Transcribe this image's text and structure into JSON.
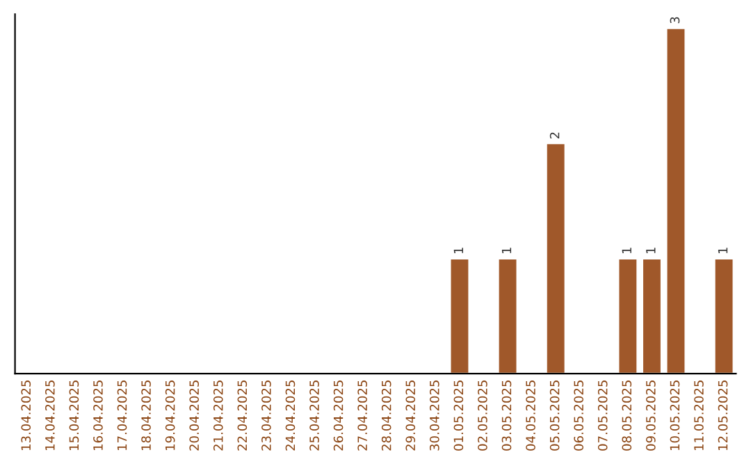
{
  "chart_data": {
    "type": "bar",
    "categories": [
      "13.04.2025",
      "14.04.2025",
      "15.04.2025",
      "16.04.2025",
      "17.04.2025",
      "18.04.2025",
      "19.04.2025",
      "20.04.2025",
      "21.04.2025",
      "22.04.2025",
      "23.04.2025",
      "24.04.2025",
      "25.04.2025",
      "26.04.2025",
      "27.04.2025",
      "28.04.2025",
      "29.04.2025",
      "30.04.2025",
      "01.05.2025",
      "02.05.2025",
      "03.05.2025",
      "04.05.2025",
      "05.05.2025",
      "06.05.2025",
      "07.05.2025",
      "08.05.2025",
      "09.05.2025",
      "10.05.2025",
      "11.05.2025",
      "12.05.2025"
    ],
    "values": [
      null,
      null,
      null,
      null,
      null,
      null,
      null,
      null,
      null,
      null,
      null,
      null,
      null,
      null,
      null,
      null,
      null,
      null,
      1,
      null,
      1,
      null,
      2,
      null,
      null,
      1,
      1,
      3,
      null,
      1
    ],
    "value_labels": [
      null,
      null,
      null,
      null,
      null,
      null,
      null,
      null,
      null,
      null,
      null,
      null,
      null,
      null,
      null,
      null,
      null,
      null,
      "1",
      null,
      "1",
      null,
      "2",
      null,
      null,
      "1",
      "1",
      "3",
      null,
      "1"
    ],
    "color": "#a0582a",
    "grid": false,
    "tick_labels": "x"
  }
}
